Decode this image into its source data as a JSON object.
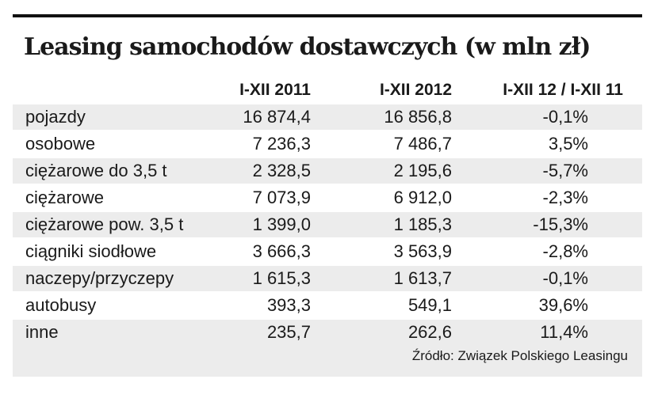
{
  "chart_data": {
    "type": "table",
    "title": "Leasing samochodów dostawczych (w mln zł)",
    "columns": [
      "I-XII 2011",
      "I-XII 2012",
      "I-XII 12 / I-XII 11"
    ],
    "rows": [
      {
        "label": "pojazdy",
        "values": [
          "16 874,4",
          "16 856,8",
          "-0,1%"
        ]
      },
      {
        "label": "osobowe",
        "values": [
          "7 236,3",
          "7 486,7",
          "3,5%"
        ]
      },
      {
        "label": "ciężarowe do 3,5 t",
        "values": [
          "2 328,5",
          "2 195,6",
          "-5,7%"
        ]
      },
      {
        "label": "ciężarowe",
        "values": [
          "7 073,9",
          "6 912,0",
          "-2,3%"
        ]
      },
      {
        "label": "ciężarowe pow. 3,5 t",
        "values": [
          "1 399,0",
          "1 185,3",
          "-15,3%"
        ]
      },
      {
        "label": "ciągniki siodłowe",
        "values": [
          "3 666,3",
          "3 563,9",
          "-2,8%"
        ]
      },
      {
        "label": "naczepy/przyczepy",
        "values": [
          "1 615,3",
          "1 613,7",
          "-0,1%"
        ]
      },
      {
        "label": "autobusy",
        "values": [
          "393,3",
          "549,1",
          "39,6%"
        ]
      },
      {
        "label": "inne",
        "values": [
          "235,7",
          "262,6",
          "11,4%"
        ]
      }
    ],
    "source": "Źródło: Związek Polskiego Leasingu"
  },
  "colors": {
    "rule": "#111111",
    "stripe": "#ececec",
    "text": "#1a1a1a"
  }
}
